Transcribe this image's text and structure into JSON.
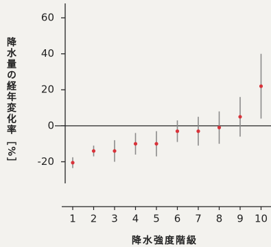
{
  "chart_data": {
    "type": "errorbar",
    "ylabel": "降水量の経年変化率［%］",
    "xlabel": "降水強度階級",
    "categories": [
      "1",
      "2",
      "3",
      "4",
      "5",
      "6",
      "7",
      "8",
      "9",
      "10"
    ],
    "values": [
      -20.5,
      -14,
      -14,
      -10,
      -10,
      -3,
      -3,
      -1,
      5,
      22
    ],
    "errors": [
      3,
      3,
      6,
      6,
      7,
      6,
      8,
      9,
      11,
      18
    ],
    "color": "#d8333a",
    "error_color": "#8a8a8a",
    "ylim": [
      -32,
      68
    ],
    "yticks": [
      -20,
      0,
      20,
      40,
      60
    ]
  }
}
